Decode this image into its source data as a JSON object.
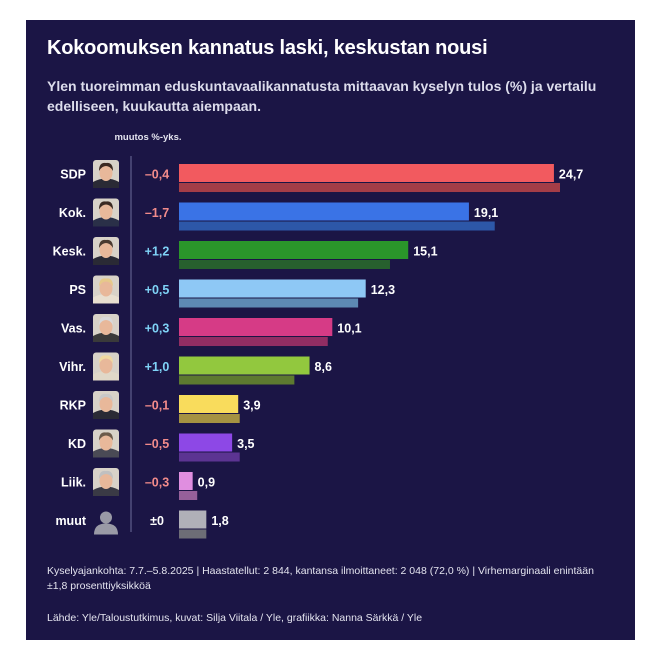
{
  "title": "Kokoomuksen kannatus laski, keskustan nousi",
  "subtitle": "Ylen tuoreimman eduskuntavaalikannatusta mittaavan kyselyn tulos (%) ja vertailu edelliseen, kuukautta aiempaan.",
  "change_header": "muutos %-yks.",
  "footnote": "Kyselyajankohta: 7.7.–5.8.2025 | Haastatellut: 2 844, kantansa ilmoittaneet: 2 048 (72,0 %) | Virhemarginaali enintään ±1,8 prosenttiyksikköä",
  "source": "Lähde: Yle/Taloustutkimus, kuvat: Silja Viitala / Yle, grafiikka: Nanna Särkkä / Yle",
  "colors": {
    "background": "#1b1545",
    "positive_change": "#7fd3f7",
    "negative_change": "#f28b8b"
  },
  "chart_data": {
    "type": "bar",
    "orientation": "horizontal",
    "categories": [
      "SDP",
      "Kok.",
      "Kesk.",
      "PS",
      "Vas.",
      "Vihr.",
      "RKP",
      "KD",
      "Liik.",
      "muut"
    ],
    "series": [
      {
        "values": [
          24.7,
          19.1,
          15.1,
          12.3,
          10.1,
          8.6,
          3.9,
          3.5,
          0.9,
          1.8
        ],
        "value_labels": [
          "24,7",
          "19,1",
          "15,1",
          "12,3",
          "10,1",
          "8,6",
          "3,9",
          "3,5",
          "0,9",
          "1,8"
        ],
        "colors": [
          "#f25a5f",
          "#3a73e6",
          "#2a962a",
          "#8ec8f5",
          "#d63b86",
          "#92c83e",
          "#f9dc5c",
          "#8d48e6",
          "#e08ee0",
          "#b0b0b8"
        ]
      },
      {
        "values": [
          25.1,
          20.8,
          13.9,
          11.8,
          9.8,
          7.6,
          4.0,
          4.0,
          1.2,
          1.8
        ],
        "colors": [
          "#a43d47",
          "#2d57a8",
          "#27602e",
          "#5d89b3",
          "#912d63",
          "#5d7a30",
          "#a59242",
          "#5c3492",
          "#96609a",
          "#6d6d76"
        ]
      }
    ],
    "changes": [
      "–0,4",
      "–1,7",
      "+1,2",
      "+0,5",
      "+0,3",
      "+1,0",
      "–0,1",
      "–0,5",
      "–0,3",
      "±0"
    ],
    "portrait_icons": [
      "sdp-leader-portrait",
      "kok-leader-portrait",
      "kesk-leader-portrait",
      "ps-leader-portrait",
      "vas-leader-portrait",
      "vihr-leader-portrait",
      "rkp-leader-portrait",
      "kd-leader-portrait",
      "liik-leader-portrait",
      "generic-person-silhouette"
    ],
    "xlim": [
      0,
      25.1
    ],
    "grid": false,
    "legend": "none"
  }
}
